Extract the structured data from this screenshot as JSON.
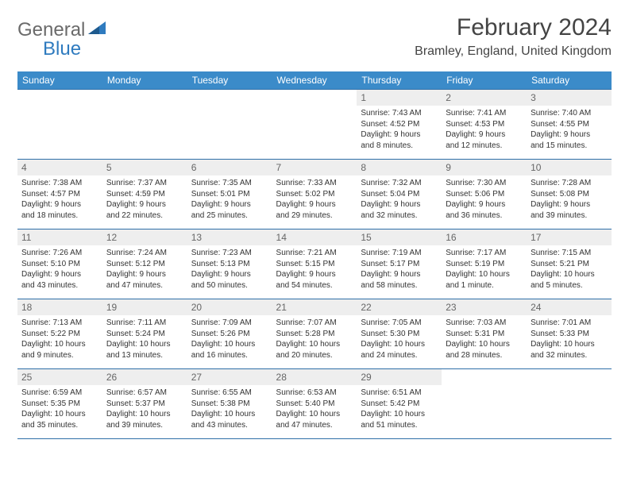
{
  "logo": {
    "text1": "General",
    "text2": "Blue",
    "accent": "#2f7bbf"
  },
  "title": "February 2024",
  "location": "Bramley, England, United Kingdom",
  "colors": {
    "header_bg": "#3b8bc9",
    "header_text": "#ffffff",
    "row_border": "#2f6fa8",
    "daynum_bg": "#eeeeee",
    "daynum_text": "#666666",
    "body_text": "#333333"
  },
  "weekdays": [
    "Sunday",
    "Monday",
    "Tuesday",
    "Wednesday",
    "Thursday",
    "Friday",
    "Saturday"
  ],
  "weeks": [
    [
      null,
      null,
      null,
      null,
      {
        "n": "1",
        "sr": "Sunrise: 7:43 AM",
        "ss": "Sunset: 4:52 PM",
        "d1": "Daylight: 9 hours",
        "d2": "and 8 minutes."
      },
      {
        "n": "2",
        "sr": "Sunrise: 7:41 AM",
        "ss": "Sunset: 4:53 PM",
        "d1": "Daylight: 9 hours",
        "d2": "and 12 minutes."
      },
      {
        "n": "3",
        "sr": "Sunrise: 7:40 AM",
        "ss": "Sunset: 4:55 PM",
        "d1": "Daylight: 9 hours",
        "d2": "and 15 minutes."
      }
    ],
    [
      {
        "n": "4",
        "sr": "Sunrise: 7:38 AM",
        "ss": "Sunset: 4:57 PM",
        "d1": "Daylight: 9 hours",
        "d2": "and 18 minutes."
      },
      {
        "n": "5",
        "sr": "Sunrise: 7:37 AM",
        "ss": "Sunset: 4:59 PM",
        "d1": "Daylight: 9 hours",
        "d2": "and 22 minutes."
      },
      {
        "n": "6",
        "sr": "Sunrise: 7:35 AM",
        "ss": "Sunset: 5:01 PM",
        "d1": "Daylight: 9 hours",
        "d2": "and 25 minutes."
      },
      {
        "n": "7",
        "sr": "Sunrise: 7:33 AM",
        "ss": "Sunset: 5:02 PM",
        "d1": "Daylight: 9 hours",
        "d2": "and 29 minutes."
      },
      {
        "n": "8",
        "sr": "Sunrise: 7:32 AM",
        "ss": "Sunset: 5:04 PM",
        "d1": "Daylight: 9 hours",
        "d2": "and 32 minutes."
      },
      {
        "n": "9",
        "sr": "Sunrise: 7:30 AM",
        "ss": "Sunset: 5:06 PM",
        "d1": "Daylight: 9 hours",
        "d2": "and 36 minutes."
      },
      {
        "n": "10",
        "sr": "Sunrise: 7:28 AM",
        "ss": "Sunset: 5:08 PM",
        "d1": "Daylight: 9 hours",
        "d2": "and 39 minutes."
      }
    ],
    [
      {
        "n": "11",
        "sr": "Sunrise: 7:26 AM",
        "ss": "Sunset: 5:10 PM",
        "d1": "Daylight: 9 hours",
        "d2": "and 43 minutes."
      },
      {
        "n": "12",
        "sr": "Sunrise: 7:24 AM",
        "ss": "Sunset: 5:12 PM",
        "d1": "Daylight: 9 hours",
        "d2": "and 47 minutes."
      },
      {
        "n": "13",
        "sr": "Sunrise: 7:23 AM",
        "ss": "Sunset: 5:13 PM",
        "d1": "Daylight: 9 hours",
        "d2": "and 50 minutes."
      },
      {
        "n": "14",
        "sr": "Sunrise: 7:21 AM",
        "ss": "Sunset: 5:15 PM",
        "d1": "Daylight: 9 hours",
        "d2": "and 54 minutes."
      },
      {
        "n": "15",
        "sr": "Sunrise: 7:19 AM",
        "ss": "Sunset: 5:17 PM",
        "d1": "Daylight: 9 hours",
        "d2": "and 58 minutes."
      },
      {
        "n": "16",
        "sr": "Sunrise: 7:17 AM",
        "ss": "Sunset: 5:19 PM",
        "d1": "Daylight: 10 hours",
        "d2": "and 1 minute."
      },
      {
        "n": "17",
        "sr": "Sunrise: 7:15 AM",
        "ss": "Sunset: 5:21 PM",
        "d1": "Daylight: 10 hours",
        "d2": "and 5 minutes."
      }
    ],
    [
      {
        "n": "18",
        "sr": "Sunrise: 7:13 AM",
        "ss": "Sunset: 5:22 PM",
        "d1": "Daylight: 10 hours",
        "d2": "and 9 minutes."
      },
      {
        "n": "19",
        "sr": "Sunrise: 7:11 AM",
        "ss": "Sunset: 5:24 PM",
        "d1": "Daylight: 10 hours",
        "d2": "and 13 minutes."
      },
      {
        "n": "20",
        "sr": "Sunrise: 7:09 AM",
        "ss": "Sunset: 5:26 PM",
        "d1": "Daylight: 10 hours",
        "d2": "and 16 minutes."
      },
      {
        "n": "21",
        "sr": "Sunrise: 7:07 AM",
        "ss": "Sunset: 5:28 PM",
        "d1": "Daylight: 10 hours",
        "d2": "and 20 minutes."
      },
      {
        "n": "22",
        "sr": "Sunrise: 7:05 AM",
        "ss": "Sunset: 5:30 PM",
        "d1": "Daylight: 10 hours",
        "d2": "and 24 minutes."
      },
      {
        "n": "23",
        "sr": "Sunrise: 7:03 AM",
        "ss": "Sunset: 5:31 PM",
        "d1": "Daylight: 10 hours",
        "d2": "and 28 minutes."
      },
      {
        "n": "24",
        "sr": "Sunrise: 7:01 AM",
        "ss": "Sunset: 5:33 PM",
        "d1": "Daylight: 10 hours",
        "d2": "and 32 minutes."
      }
    ],
    [
      {
        "n": "25",
        "sr": "Sunrise: 6:59 AM",
        "ss": "Sunset: 5:35 PM",
        "d1": "Daylight: 10 hours",
        "d2": "and 35 minutes."
      },
      {
        "n": "26",
        "sr": "Sunrise: 6:57 AM",
        "ss": "Sunset: 5:37 PM",
        "d1": "Daylight: 10 hours",
        "d2": "and 39 minutes."
      },
      {
        "n": "27",
        "sr": "Sunrise: 6:55 AM",
        "ss": "Sunset: 5:38 PM",
        "d1": "Daylight: 10 hours",
        "d2": "and 43 minutes."
      },
      {
        "n": "28",
        "sr": "Sunrise: 6:53 AM",
        "ss": "Sunset: 5:40 PM",
        "d1": "Daylight: 10 hours",
        "d2": "and 47 minutes."
      },
      {
        "n": "29",
        "sr": "Sunrise: 6:51 AM",
        "ss": "Sunset: 5:42 PM",
        "d1": "Daylight: 10 hours",
        "d2": "and 51 minutes."
      },
      null,
      null
    ]
  ]
}
